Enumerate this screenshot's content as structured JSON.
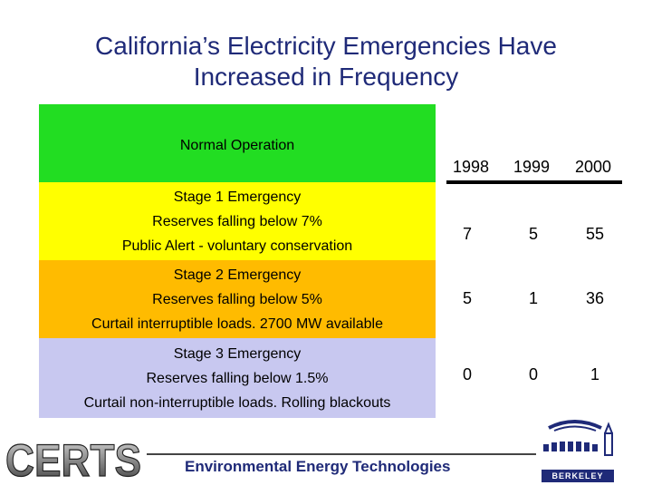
{
  "slide": {
    "title_line1": "California’s Electricity Emergencies Have",
    "title_line2": "Increased in Frequency"
  },
  "levels": [
    {
      "lines": [
        "Normal Operation"
      ],
      "color": "#22dd22"
    },
    {
      "lines": [
        "Stage 1 Emergency",
        "Reserves falling below 7%",
        "Public Alert - voluntary conservation"
      ],
      "color": "#ffff00"
    },
    {
      "lines": [
        "Stage 2 Emergency",
        "Reserves falling below 5%",
        "Curtail interruptible loads. 2700 MW available"
      ],
      "color": "#ffbb00"
    },
    {
      "lines": [
        "Stage 3 Emergency",
        "Reserves falling below 1.5%",
        "Curtail non-interruptible loads. Rolling blackouts"
      ],
      "color": "#c8c8f0"
    }
  ],
  "table": {
    "years": [
      "1998",
      "1999",
      "2000"
    ],
    "rows": [
      [
        "7",
        "5",
        "55"
      ],
      [
        "5",
        "1",
        "36"
      ],
      [
        "0",
        "0",
        "1"
      ]
    ]
  },
  "footer": {
    "logo_text": "CERTS",
    "tagline": "Environmental Energy Technologies",
    "lab_name": "BERKELEY LAB"
  }
}
